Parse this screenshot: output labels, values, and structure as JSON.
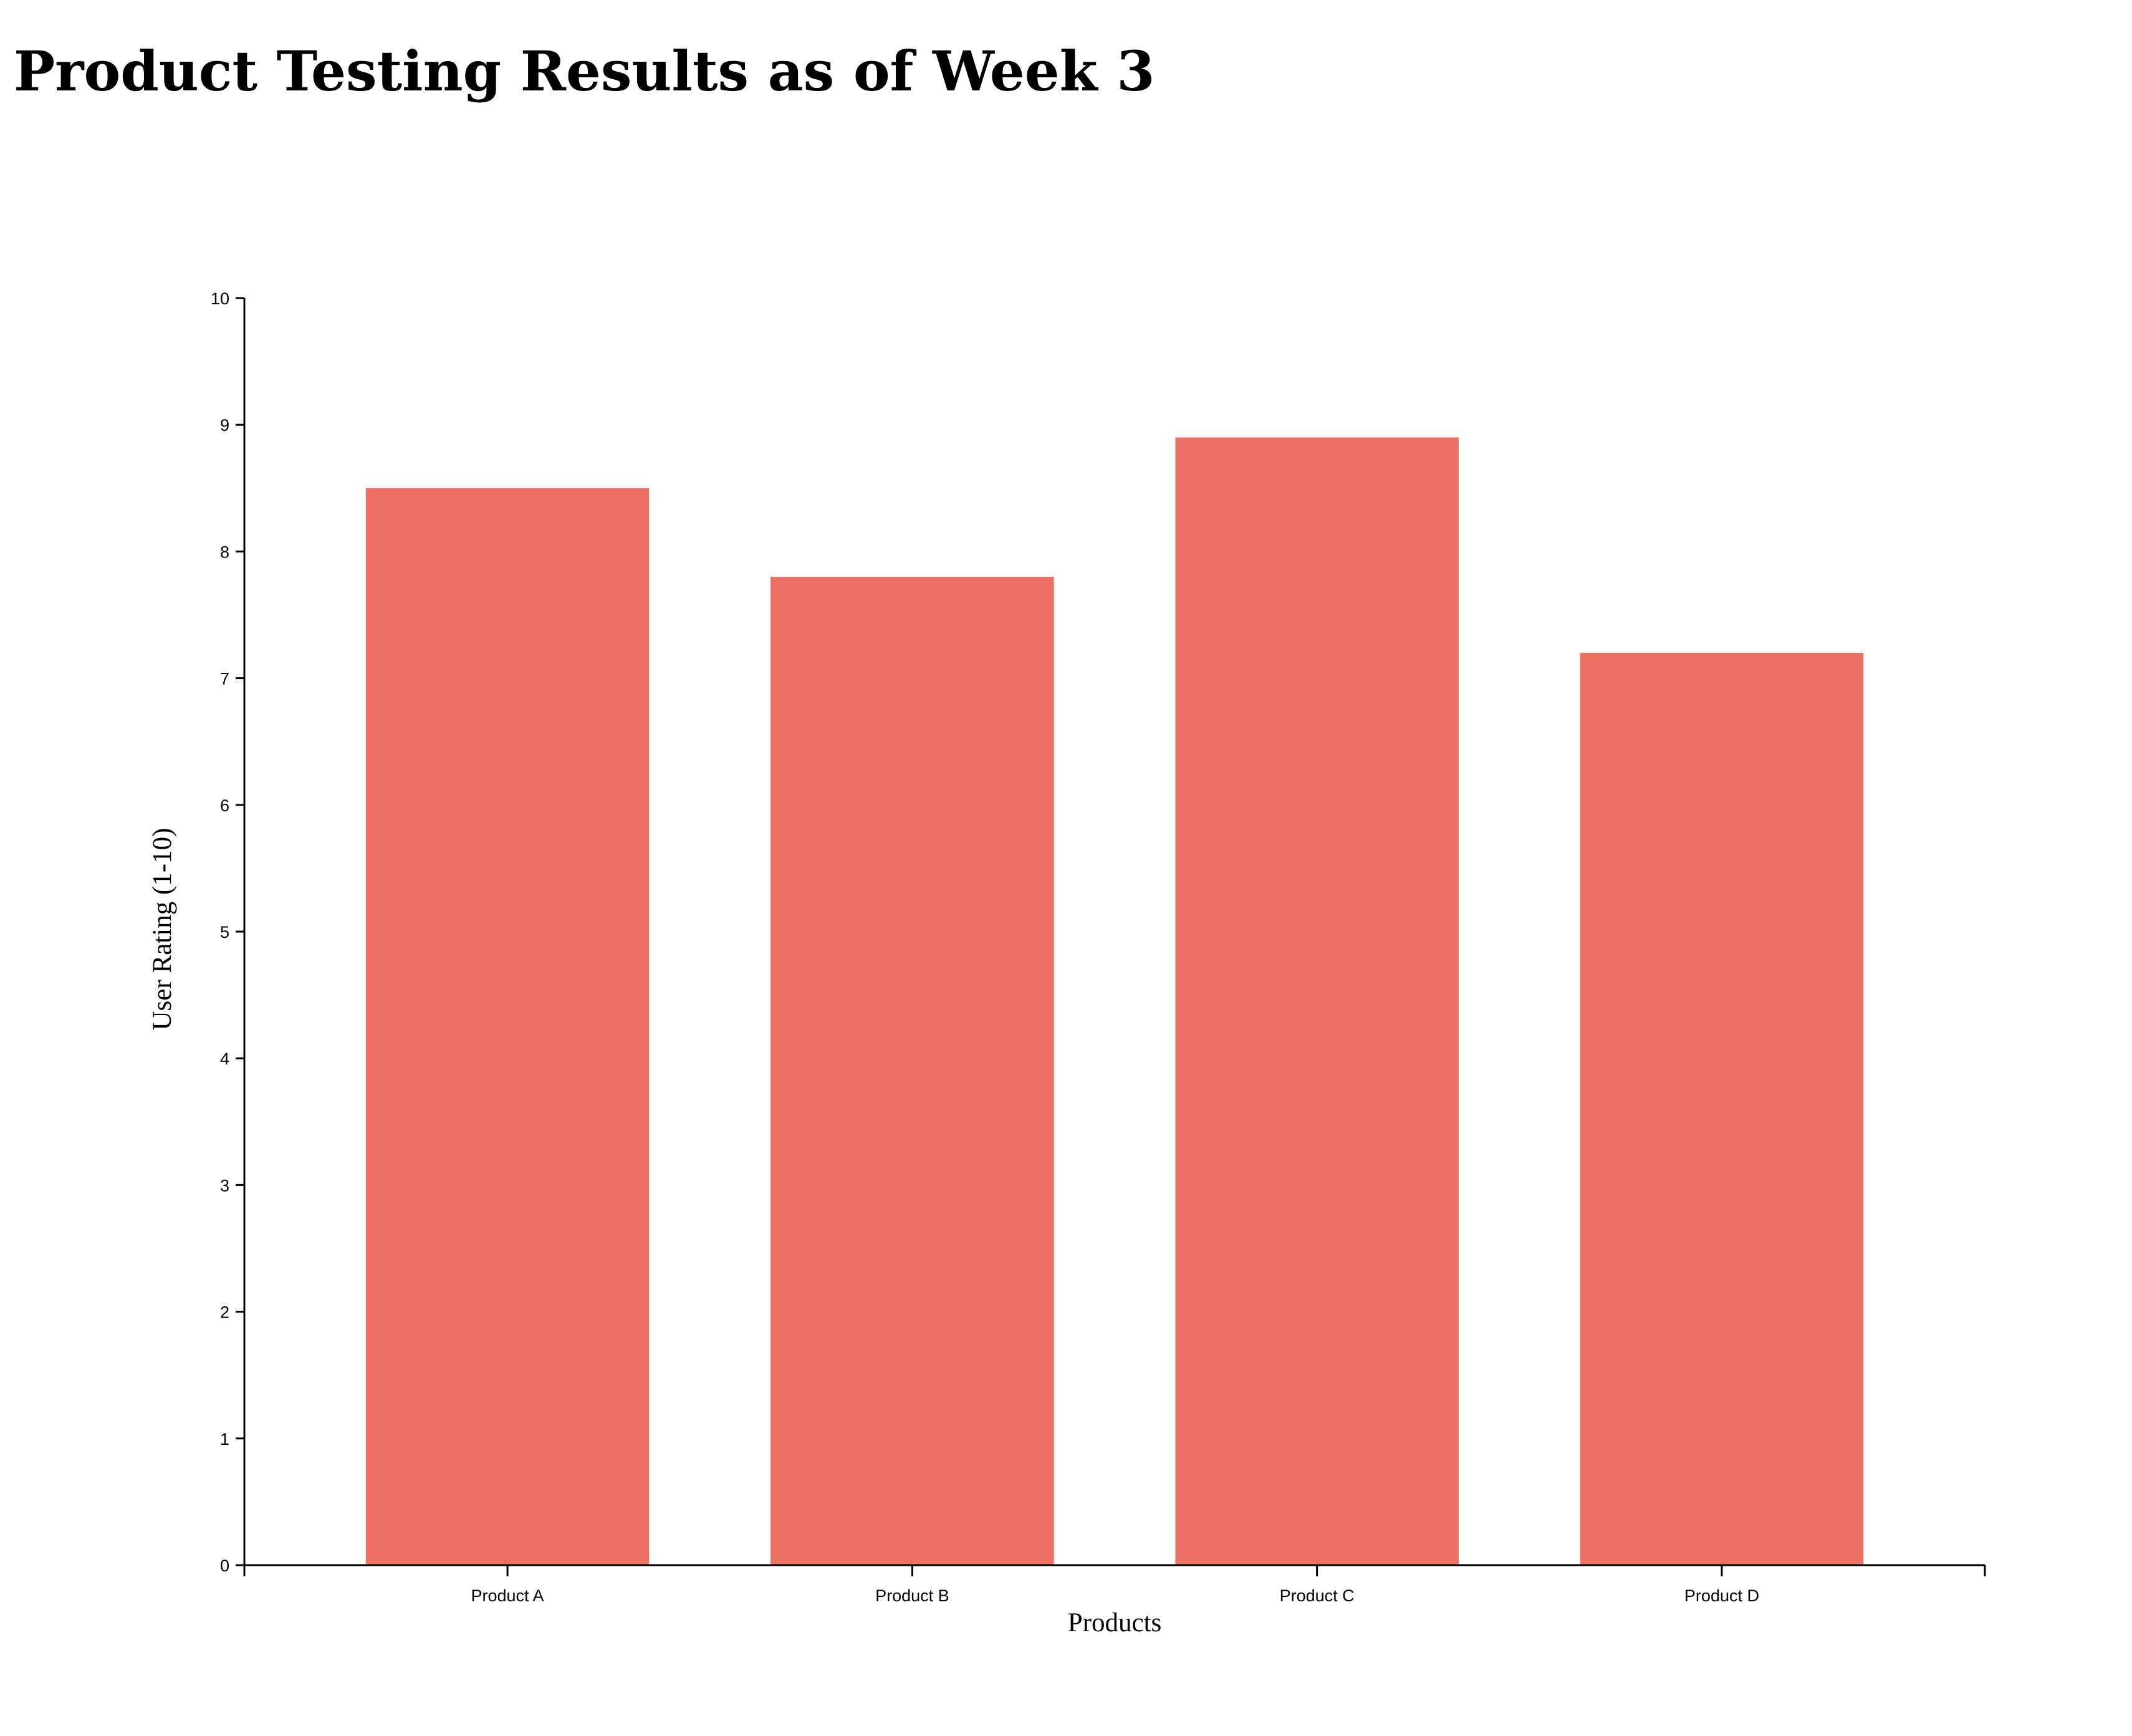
{
  "title": "Product Testing Results as of Week 3",
  "chart_data": {
    "type": "bar",
    "categories": [
      "Product A",
      "Product B",
      "Product C",
      "Product D"
    ],
    "values": [
      8.5,
      7.8,
      8.9,
      7.2
    ],
    "xlabel": "Products",
    "ylabel": "User Rating (1-10)",
    "ylim": [
      0,
      10
    ],
    "yticks": [
      "0",
      "1",
      "2",
      "3",
      "4",
      "5",
      "6",
      "7",
      "8",
      "9",
      "10"
    ],
    "bar_color": "#ec7063",
    "grid": false,
    "legend": "none"
  }
}
